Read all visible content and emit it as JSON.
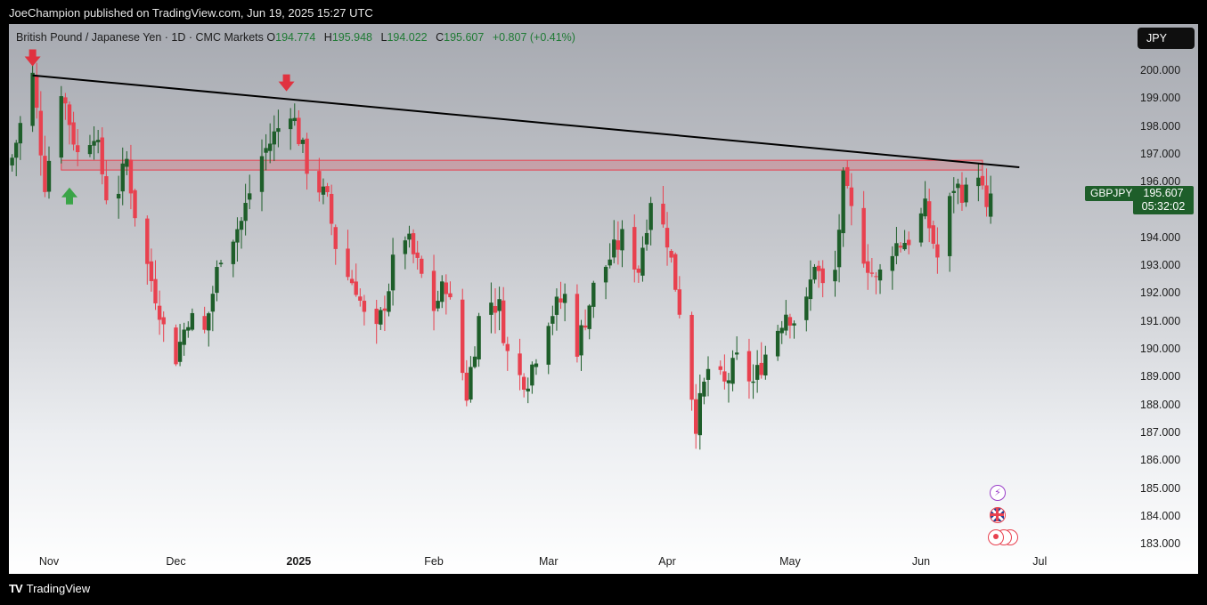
{
  "header": {
    "publish_text": "JoeChampion published on TradingView.com, Jun 19, 2025 15:27 UTC"
  },
  "legend": {
    "instrument": "British Pound / Japanese Yen · 1D · CMC Markets",
    "open_key": "O",
    "open": "194.774",
    "high_key": "H",
    "high": "195.948",
    "low_key": "L",
    "low": "194.022",
    "close_key": "C",
    "close": "195.607",
    "change": "+0.807 (+0.41%)"
  },
  "currency_button": "JPY",
  "symbol_tag": "GBPJPY",
  "last_price": "195.607",
  "countdown": "05:32:02",
  "footer": {
    "brand": "TradingView",
    "logo": "TV"
  },
  "colors": {
    "up": "#1e5e2a",
    "down": "#e8414f",
    "trendline": "#000000",
    "zone_fill": "rgba(232,65,79,0.22)",
    "zone_border": "#e8414f",
    "arrow_down": "#e0323f",
    "arrow_up": "#3aa447"
  },
  "chart_data": {
    "type": "candlestick",
    "title": "British Pound / Japanese Yen · 1D · CMC Markets",
    "ylim": [
      182.6,
      201.6
    ],
    "y_ticks": [
      "200.000",
      "199.000",
      "198.000",
      "197.000",
      "196.000",
      "195.000",
      "194.000",
      "193.000",
      "192.000",
      "191.000",
      "190.000",
      "189.000",
      "188.000",
      "187.000",
      "186.000",
      "185.000",
      "184.000",
      "183.000"
    ],
    "x_labels": [
      "Nov",
      "Dec",
      "2025",
      "Feb",
      "Mar",
      "Apr",
      "May",
      "Jun",
      "Jul"
    ],
    "x_label_dates": [
      "2024-11-01",
      "2024-12-02",
      "2025-01-01",
      "2025-02-03",
      "2025-03-03",
      "2025-04-01",
      "2025-05-01",
      "2025-06-02",
      "2025-07-01"
    ],
    "date_range": [
      "2024-10-23",
      "2025-06-19"
    ],
    "icons": [
      "event-lightning-icon",
      "event-uk-flag-icon",
      "event-japan-flag-icon"
    ],
    "close_path": [
      {
        "date": "2024-10-23",
        "close": 196.9
      },
      {
        "date": "2024-10-28",
        "close": 199.8
      },
      {
        "date": "2024-10-31",
        "close": 196.0
      },
      {
        "date": "2024-11-04",
        "close": 199.4
      },
      {
        "date": "2024-11-08",
        "close": 197.0
      },
      {
        "date": "2024-11-12",
        "close": 197.9
      },
      {
        "date": "2024-11-16",
        "close": 194.8
      },
      {
        "date": "2024-11-20",
        "close": 196.8
      },
      {
        "date": "2024-11-23",
        "close": 194.0
      },
      {
        "date": "2024-11-28",
        "close": 191.5
      },
      {
        "date": "2024-12-01",
        "close": 189.3
      },
      {
        "date": "2024-12-05",
        "close": 191.2
      },
      {
        "date": "2024-12-09",
        "close": 190.6
      },
      {
        "date": "2024-12-13",
        "close": 193.5
      },
      {
        "date": "2024-12-18",
        "close": 194.6
      },
      {
        "date": "2024-12-22",
        "close": 196.7
      },
      {
        "date": "2024-12-26",
        "close": 197.7
      },
      {
        "date": "2024-12-30",
        "close": 198.7
      },
      {
        "date": "2025-01-03",
        "close": 196.6
      },
      {
        "date": "2025-01-08",
        "close": 195.3
      },
      {
        "date": "2025-01-11",
        "close": 193.0
      },
      {
        "date": "2025-01-15",
        "close": 192.3
      },
      {
        "date": "2025-01-19",
        "close": 190.0
      },
      {
        "date": "2025-01-23",
        "close": 192.3
      },
      {
        "date": "2025-01-26",
        "close": 194.5
      },
      {
        "date": "2025-01-30",
        "close": 193.0
      },
      {
        "date": "2025-02-03",
        "close": 191.5
      },
      {
        "date": "2025-02-06",
        "close": 192.4
      },
      {
        "date": "2025-02-11",
        "close": 188.4
      },
      {
        "date": "2025-02-15",
        "close": 192.0
      },
      {
        "date": "2025-02-19",
        "close": 191.5
      },
      {
        "date": "2025-02-22",
        "close": 189.0
      },
      {
        "date": "2025-02-26",
        "close": 189.0
      },
      {
        "date": "2025-03-03",
        "close": 191.2
      },
      {
        "date": "2025-03-07",
        "close": 191.9
      },
      {
        "date": "2025-03-10",
        "close": 190.1
      },
      {
        "date": "2025-03-14",
        "close": 192.2
      },
      {
        "date": "2025-03-18",
        "close": 193.3
      },
      {
        "date": "2025-03-21",
        "close": 194.0
      },
      {
        "date": "2025-03-25",
        "close": 192.9
      },
      {
        "date": "2025-03-28",
        "close": 195.5
      },
      {
        "date": "2025-04-01",
        "close": 194.0
      },
      {
        "date": "2025-04-04",
        "close": 191.5
      },
      {
        "date": "2025-04-08",
        "close": 187.4
      },
      {
        "date": "2025-04-11",
        "close": 189.3
      },
      {
        "date": "2025-04-15",
        "close": 188.7
      },
      {
        "date": "2025-04-18",
        "close": 189.6
      },
      {
        "date": "2025-04-22",
        "close": 188.8
      },
      {
        "date": "2025-04-26",
        "close": 190.2
      },
      {
        "date": "2025-04-30",
        "close": 191.4
      },
      {
        "date": "2025-05-04",
        "close": 190.8
      },
      {
        "date": "2025-05-07",
        "close": 193.2
      },
      {
        "date": "2025-05-11",
        "close": 191.2
      },
      {
        "date": "2025-05-14",
        "close": 196.0
      },
      {
        "date": "2025-05-18",
        "close": 193.8
      },
      {
        "date": "2025-05-22",
        "close": 192.4
      },
      {
        "date": "2025-05-26",
        "close": 193.7
      },
      {
        "date": "2025-05-30",
        "close": 194.0
      },
      {
        "date": "2025-06-03",
        "close": 195.0
      },
      {
        "date": "2025-06-06",
        "close": 193.3
      },
      {
        "date": "2025-06-10",
        "close": 195.9
      },
      {
        "date": "2025-06-14",
        "close": 195.5
      },
      {
        "date": "2025-06-16",
        "close": 196.5
      },
      {
        "date": "2025-06-18",
        "close": 194.8
      },
      {
        "date": "2025-06-19",
        "close": 195.607
      }
    ],
    "annotations": {
      "trendline": [
        {
          "date": "2024-10-28",
          "price": 199.85
        },
        {
          "date": "2025-06-26",
          "price": 196.55
        }
      ],
      "resistance_zone": {
        "date_from": "2024-11-04",
        "date_to": "2025-06-17",
        "price_from": 196.45,
        "price_to": 196.8
      },
      "down_arrows": [
        {
          "date": "2024-10-28",
          "price": 200.4
        },
        {
          "date": "2024-12-29",
          "price": 199.5
        }
      ],
      "up_arrows": [
        {
          "date": "2024-11-06",
          "price": 195.6
        }
      ]
    }
  }
}
